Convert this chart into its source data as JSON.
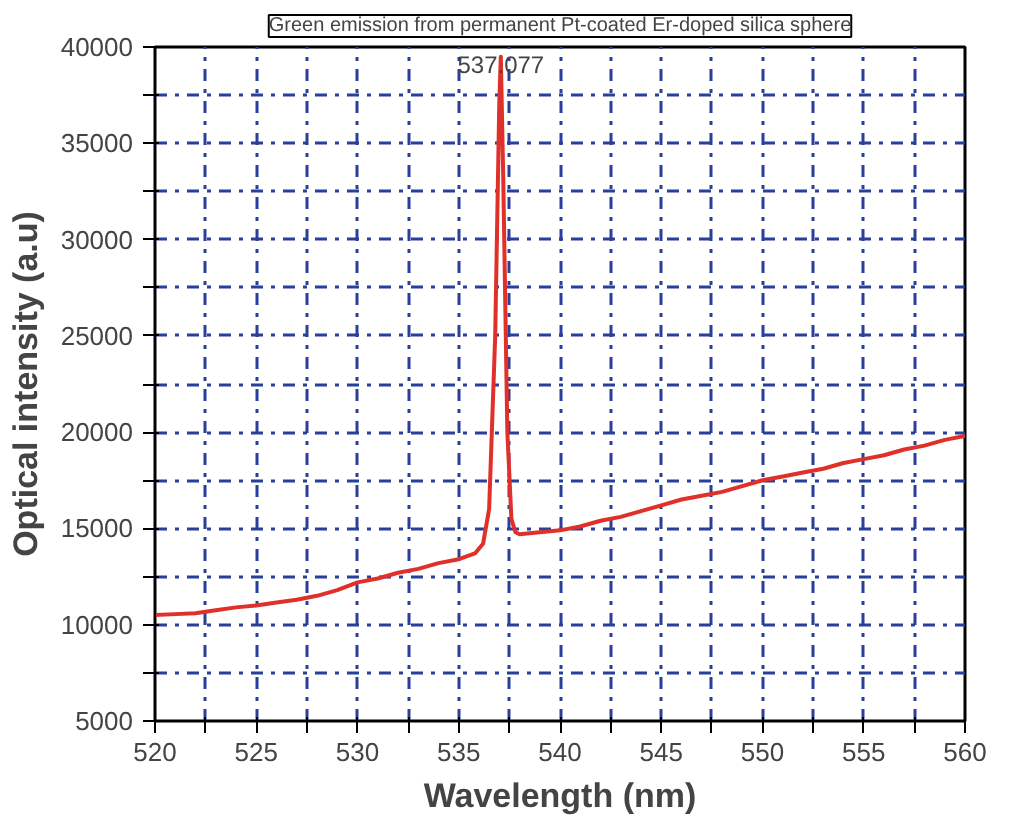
{
  "chart_data": {
    "type": "line",
    "title": "Green emission from permanent Pt-coated Er-doped silica sphere",
    "xlabel": "Wavelength (nm)",
    "ylabel": "Optical intensity (a.u)",
    "x": [
      520,
      521,
      522,
      523,
      524,
      525,
      526,
      527,
      528,
      529,
      530,
      531,
      532,
      533,
      534,
      535,
      535.8,
      536.2,
      536.5,
      536.8,
      537.0,
      537.077,
      537.2,
      537.4,
      537.6,
      537.8,
      538,
      539,
      540,
      541,
      542,
      543,
      544,
      545,
      546,
      547,
      548,
      549,
      550,
      551,
      552,
      553,
      554,
      555,
      556,
      557,
      558,
      559,
      560
    ],
    "series": [
      {
        "color": "#e0302a",
        "values": [
          10500,
          10550,
          10600,
          10750,
          10900,
          11000,
          11150,
          11300,
          11500,
          11800,
          12200,
          12400,
          12700,
          12900,
          13200,
          13400,
          13700,
          14200,
          16000,
          25000,
          37000,
          39500,
          33000,
          20000,
          15500,
          14800,
          14700,
          14800,
          14900,
          15100,
          15400,
          15600,
          15900,
          16200,
          16500,
          16700,
          16900,
          17200,
          17500,
          17700,
          17900,
          18100,
          18400,
          18600,
          18800,
          19100,
          19300,
          19600,
          19800
        ]
      }
    ],
    "annotations": [
      {
        "text": "537.077",
        "x": 537.077,
        "y": 39500
      }
    ],
    "xlim": [
      520,
      560
    ],
    "ylim": [
      5000,
      40000
    ],
    "xticks": [
      520,
      {
        "value": 522.5,
        "label": null
      },
      525,
      {
        "value": 527.5,
        "label": null
      },
      530,
      {
        "value": 532.5,
        "label": null
      },
      535,
      {
        "value": 537.5,
        "label": null
      },
      540,
      {
        "value": 542.5,
        "label": null
      },
      545,
      {
        "value": 547.5,
        "label": null
      },
      550,
      {
        "value": 552.5,
        "label": null
      },
      555,
      {
        "value": 557.5,
        "label": null
      },
      560
    ],
    "yticks": [
      5000,
      {
        "value": 7500,
        "label": null
      },
      10000,
      {
        "value": 12500,
        "label": null
      },
      15000,
      {
        "value": 17500,
        "label": null
      },
      20000,
      {
        "value": 22500,
        "label": null
      },
      25000,
      {
        "value": 27500,
        "label": null
      },
      30000,
      {
        "value": 32500,
        "label": null
      },
      35000,
      {
        "value": 37500,
        "label": null
      },
      40000
    ],
    "grid": true,
    "marker": "none",
    "line_style": "solid"
  }
}
